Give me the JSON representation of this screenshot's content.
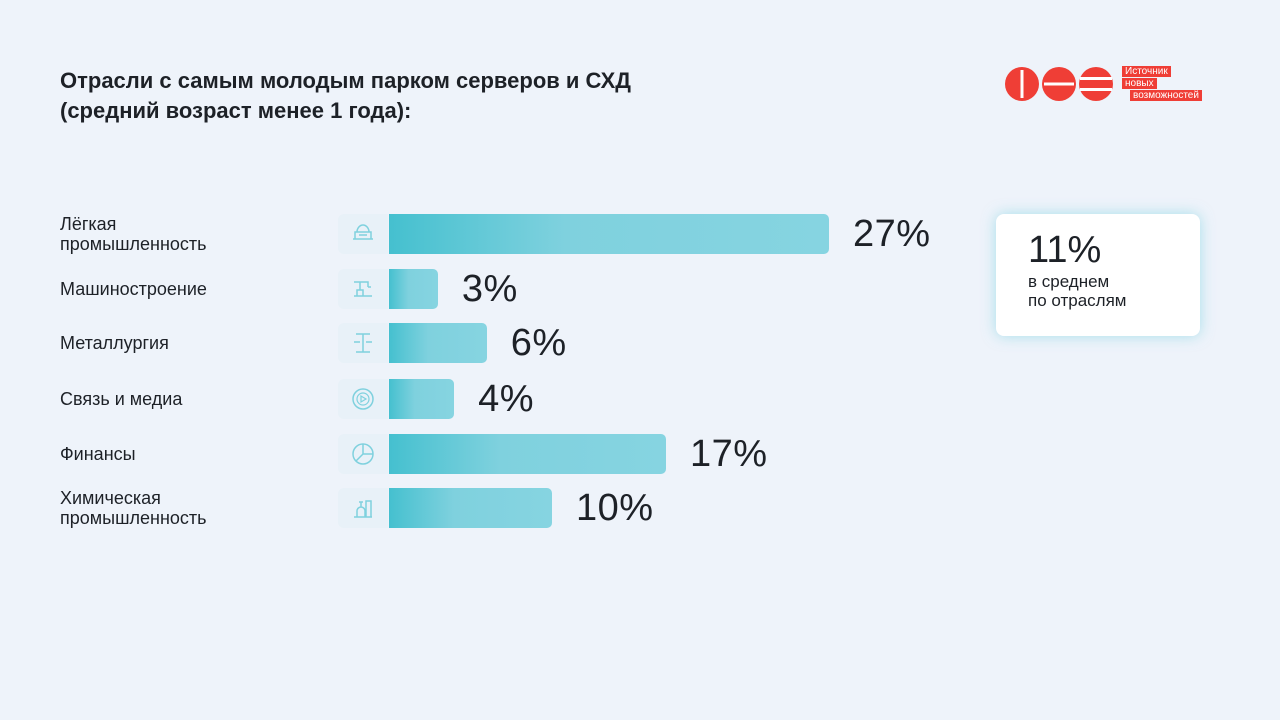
{
  "title": {
    "line1": "Отрасли с самым молодым парком серверов и СХД",
    "line2": "(средний возраст менее 1 года):"
  },
  "logo": {
    "tag_line1": "Источник",
    "tag_line2": "новых",
    "tag_line3": "возможностей",
    "brand_color": "#ef3e36"
  },
  "average": {
    "value": "11%",
    "label_line1": "в среднем",
    "label_line2": "по отраслям"
  },
  "colors": {
    "bar_start": "#45c0cf",
    "bar_end": "#86d4e1",
    "icon": "#7fd1de"
  },
  "chart_data": {
    "type": "bar",
    "orientation": "horizontal",
    "categories": [
      [
        "Лёгкая",
        "промышленность"
      ],
      [
        "Машиностроение"
      ],
      [
        "Металлургия"
      ],
      [
        "Связь и медиа"
      ],
      [
        "Финансы"
      ],
      [
        "Химическая",
        "промышленность"
      ]
    ],
    "values": [
      27,
      3,
      6,
      4,
      17,
      10
    ],
    "value_labels": [
      "27%",
      "3%",
      "6%",
      "4%",
      "17%",
      "10%"
    ],
    "icons": [
      "sewing-machine-icon",
      "robot-arm-icon",
      "metal-beam-icon",
      "media-globe-icon",
      "pie-chart-icon",
      "chemical-plant-icon"
    ],
    "unit": "%",
    "xlim": [
      0,
      27
    ],
    "grid": false,
    "legend": "none"
  }
}
